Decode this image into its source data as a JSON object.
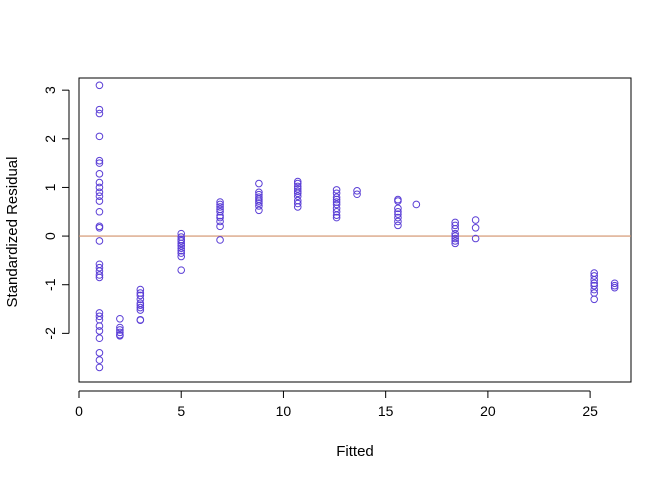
{
  "chart_data": {
    "type": "scatter",
    "title": "",
    "xlabel": "Fitted",
    "ylabel": "Standardized Residual",
    "xlim": [
      0,
      27
    ],
    "ylim": [
      -3,
      3.25
    ],
    "xticks": [
      0,
      5,
      10,
      15,
      20,
      25
    ],
    "yticks": [
      -2,
      -1,
      0,
      1,
      2,
      3
    ],
    "grid": false,
    "legend": "none",
    "point_color": "#5b3fd6",
    "reference_line": {
      "y": 0,
      "color": "#d2916a"
    },
    "points": [
      [
        1,
        3.1
      ],
      [
        1,
        2.6
      ],
      [
        1,
        2.52
      ],
      [
        1,
        2.05
      ],
      [
        1,
        1.55
      ],
      [
        1,
        1.5
      ],
      [
        1,
        1.28
      ],
      [
        1,
        1.1
      ],
      [
        1,
        1.0
      ],
      [
        1,
        0.9
      ],
      [
        1,
        0.82
      ],
      [
        1,
        0.72
      ],
      [
        1,
        0.5
      ],
      [
        1,
        0.2
      ],
      [
        1,
        0.17
      ],
      [
        1,
        -0.1
      ],
      [
        1,
        -0.58
      ],
      [
        1,
        -0.65
      ],
      [
        1,
        -0.72
      ],
      [
        1,
        -0.8
      ],
      [
        1,
        -0.85
      ],
      [
        1,
        -1.58
      ],
      [
        1,
        -1.65
      ],
      [
        1,
        -1.72
      ],
      [
        1,
        -1.85
      ],
      [
        1,
        -1.95
      ],
      [
        1,
        -2.1
      ],
      [
        1,
        -2.4
      ],
      [
        1,
        -2.55
      ],
      [
        1,
        -2.7
      ],
      [
        2,
        -1.7
      ],
      [
        2,
        -1.88
      ],
      [
        2,
        -1.93
      ],
      [
        2,
        -1.98
      ],
      [
        2,
        -2.03
      ],
      [
        2,
        -2.05
      ],
      [
        3,
        -1.1
      ],
      [
        3,
        -1.17
      ],
      [
        3,
        -1.22
      ],
      [
        3,
        -1.3
      ],
      [
        3,
        -1.38
      ],
      [
        3,
        -1.42
      ],
      [
        3,
        -1.47
      ],
      [
        3,
        -1.52
      ],
      [
        3,
        -1.72
      ],
      [
        3,
        -1.73
      ],
      [
        5,
        0.05
      ],
      [
        5,
        -0.02
      ],
      [
        5,
        -0.07
      ],
      [
        5,
        -0.1
      ],
      [
        5,
        -0.15
      ],
      [
        5,
        -0.2
      ],
      [
        5,
        -0.25
      ],
      [
        5,
        -0.3
      ],
      [
        5,
        -0.35
      ],
      [
        5,
        -0.42
      ],
      [
        5,
        -0.7
      ],
      [
        6.9,
        0.7
      ],
      [
        6.9,
        0.65
      ],
      [
        6.9,
        0.6
      ],
      [
        6.9,
        0.55
      ],
      [
        6.9,
        0.5
      ],
      [
        6.9,
        0.42
      ],
      [
        6.9,
        0.38
      ],
      [
        6.9,
        0.3
      ],
      [
        6.9,
        0.2
      ],
      [
        6.9,
        -0.08
      ],
      [
        8.8,
        1.08
      ],
      [
        8.8,
        0.9
      ],
      [
        8.8,
        0.85
      ],
      [
        8.8,
        0.8
      ],
      [
        8.8,
        0.76
      ],
      [
        8.8,
        0.72
      ],
      [
        8.8,
        0.68
      ],
      [
        8.8,
        0.62
      ],
      [
        8.8,
        0.53
      ],
      [
        10.7,
        1.12
      ],
      [
        10.7,
        1.08
      ],
      [
        10.7,
        1.02
      ],
      [
        10.7,
        0.97
      ],
      [
        10.7,
        0.92
      ],
      [
        10.7,
        0.88
      ],
      [
        10.7,
        0.82
      ],
      [
        10.7,
        0.73
      ],
      [
        10.7,
        0.67
      ],
      [
        10.7,
        0.6
      ],
      [
        12.6,
        0.95
      ],
      [
        12.6,
        0.88
      ],
      [
        12.6,
        0.8
      ],
      [
        12.6,
        0.75
      ],
      [
        12.6,
        0.7
      ],
      [
        12.6,
        0.65
      ],
      [
        12.6,
        0.57
      ],
      [
        12.6,
        0.5
      ],
      [
        12.6,
        0.43
      ],
      [
        12.6,
        0.38
      ],
      [
        13.6,
        0.93
      ],
      [
        13.6,
        0.86
      ],
      [
        15.6,
        0.75
      ],
      [
        15.6,
        0.72
      ],
      [
        15.6,
        0.57
      ],
      [
        15.6,
        0.5
      ],
      [
        15.6,
        0.45
      ],
      [
        15.6,
        0.38
      ],
      [
        15.6,
        0.3
      ],
      [
        15.6,
        0.22
      ],
      [
        16.5,
        0.65
      ],
      [
        18.4,
        0.28
      ],
      [
        18.4,
        0.22
      ],
      [
        18.4,
        0.15
      ],
      [
        18.4,
        0.05
      ],
      [
        18.4,
        0.0
      ],
      [
        18.4,
        -0.05
      ],
      [
        18.4,
        -0.1
      ],
      [
        18.4,
        -0.15
      ],
      [
        19.4,
        0.33
      ],
      [
        19.4,
        0.17
      ],
      [
        19.4,
        -0.05
      ],
      [
        25.2,
        -0.76
      ],
      [
        25.2,
        -0.82
      ],
      [
        25.2,
        -0.9
      ],
      [
        25.2,
        -0.97
      ],
      [
        25.2,
        -1.02
      ],
      [
        25.2,
        -1.1
      ],
      [
        25.2,
        -1.17
      ],
      [
        25.2,
        -1.3
      ],
      [
        26.2,
        -0.97
      ],
      [
        26.2,
        -1.02
      ],
      [
        26.2,
        -1.06
      ]
    ]
  }
}
